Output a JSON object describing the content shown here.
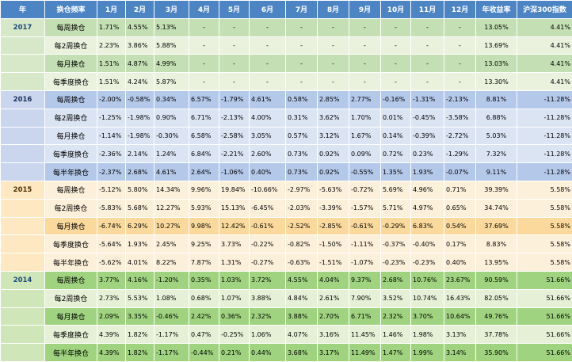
{
  "headers": [
    "年",
    "换仓频率",
    "1月",
    "2月",
    "3月",
    "4月",
    "5月",
    "6月",
    "7月",
    "8月",
    "9月",
    "10月",
    "11月",
    "12月",
    "年收益率",
    "沪深300指数"
  ],
  "groups": [
    {
      "year": "2017",
      "rows": [
        {
          "freq": "每周换仓",
          "highlight": true,
          "months": [
            "1.71%",
            "4.55%",
            "5.13%",
            "-",
            "-",
            "-",
            "-",
            "-",
            "-",
            "-",
            "-",
            "-"
          ],
          "annual": "13.05%",
          "hs300": "4.41%"
        },
        {
          "freq": "每2周换仓",
          "highlight": false,
          "months": [
            "2.23%",
            "3.86%",
            "5.88%",
            "-",
            "-",
            "-",
            "-",
            "-",
            "-",
            "-",
            "-",
            "-"
          ],
          "annual": "13.69%",
          "hs300": "4.41%"
        },
        {
          "freq": "每月换仓",
          "highlight": true,
          "months": [
            "1.51%",
            "4.87%",
            "4.99%",
            "-",
            "-",
            "-",
            "-",
            "-",
            "-",
            "-",
            "-",
            "-"
          ],
          "annual": "13.03%",
          "hs300": "4.41%"
        },
        {
          "freq": "每季度换仓",
          "highlight": false,
          "months": [
            "1.51%",
            "4.24%",
            "5.87%",
            "-",
            "-",
            "-",
            "-",
            "-",
            "-",
            "-",
            "-",
            "-"
          ],
          "annual": "13.30%",
          "hs300": "4.41%"
        }
      ]
    },
    {
      "year": "2016",
      "rows": [
        {
          "freq": "每周换仓",
          "highlight": true,
          "months": [
            "-2.00%",
            "-0.58%",
            "0.34%",
            "6.57%",
            "-1.79%",
            "4.61%",
            "0.58%",
            "2.85%",
            "2.77%",
            "-0.16%",
            "-1.31%",
            "-2.13%"
          ],
          "annual": "8.81%",
          "hs300": "-11.28%"
        },
        {
          "freq": "每2周换仓",
          "highlight": false,
          "months": [
            "-1.25%",
            "-1.98%",
            "0.90%",
            "6.71%",
            "-2.13%",
            "4.00%",
            "0.31%",
            "3.62%",
            "1.70%",
            "0.01%",
            "-0.45%",
            "-3.58%"
          ],
          "annual": "6.88%",
          "hs300": "-11.28%"
        },
        {
          "freq": "每月换仓",
          "highlight": false,
          "months": [
            "-1.14%",
            "-1.98%",
            "-0.30%",
            "6.58%",
            "-2.58%",
            "3.05%",
            "0.57%",
            "3.12%",
            "1.67%",
            "0.14%",
            "-0.39%",
            "-2.72%"
          ],
          "annual": "5.03%",
          "hs300": "-11.28%"
        },
        {
          "freq": "每季度换仓",
          "highlight": false,
          "months": [
            "-2.36%",
            "2.14%",
            "1.24%",
            "6.84%",
            "-2.21%",
            "2.60%",
            "0.73%",
            "0.92%",
            "0.09%",
            "0.72%",
            "0.23%",
            "-1.29%"
          ],
          "annual": "7.32%",
          "hs300": "-11.28%"
        },
        {
          "freq": "每半年换仓",
          "highlight": true,
          "months": [
            "-2.37%",
            "2.68%",
            "4.61%",
            "2.64%",
            "-1.06%",
            "0.40%",
            "0.73%",
            "0.92%",
            "-0.55%",
            "1.35%",
            "1.93%",
            "-0.07%"
          ],
          "annual": "9.11%",
          "hs300": "-11.28%"
        }
      ]
    },
    {
      "year": "2015",
      "rows": [
        {
          "freq": "每周换仓",
          "highlight": false,
          "months": [
            "-5.12%",
            "5.80%",
            "14.34%",
            "9.96%",
            "19.84%",
            "-10.66%",
            "-2.97%",
            "-5.63%",
            "-0.72%",
            "5.69%",
            "4.96%",
            "0.71%"
          ],
          "annual": "39.39%",
          "hs300": "5.58%"
        },
        {
          "freq": "每2周换仓",
          "highlight": false,
          "months": [
            "-5.83%",
            "5.68%",
            "12.27%",
            "5.93%",
            "15.13%",
            "-6.45%",
            "-2.03%",
            "-3.39%",
            "-1.57%",
            "5.71%",
            "4.97%",
            "0.65%"
          ],
          "annual": "34.74%",
          "hs300": "5.58%"
        },
        {
          "freq": "每月换仓",
          "highlight": true,
          "months": [
            "-6.74%",
            "6.29%",
            "10.27%",
            "9.98%",
            "12.42%",
            "-0.61%",
            "-2.52%",
            "-2.85%",
            "-0.61%",
            "-0.29%",
            "6.83%",
            "0.54%"
          ],
          "annual": "37.69%",
          "hs300": "5.58%"
        },
        {
          "freq": "每季度换仓",
          "highlight": false,
          "months": [
            "-5.64%",
            "1.93%",
            "2.45%",
            "9.25%",
            "3.73%",
            "-0.22%",
            "-0.82%",
            "-1.50%",
            "-1.11%",
            "-0.37%",
            "-0.40%",
            "0.17%"
          ],
          "annual": "8.83%",
          "hs300": "5.58%"
        },
        {
          "freq": "每半年换仓",
          "highlight": false,
          "months": [
            "-5.62%",
            "4.01%",
            "8.22%",
            "7.87%",
            "1.31%",
            "-0.27%",
            "-0.63%",
            "-1.51%",
            "-1.07%",
            "-0.23%",
            "-0.23%",
            "0.40%"
          ],
          "annual": "13.95%",
          "hs300": "5.58%"
        }
      ]
    },
    {
      "year": "2014",
      "rows": [
        {
          "freq": "每周换仓",
          "highlight": true,
          "months": [
            "3.77%",
            "4.16%",
            "-1.20%",
            "0.35%",
            "1.03%",
            "3.72%",
            "4.55%",
            "4.04%",
            "9.37%",
            "2.68%",
            "10.76%",
            "23.67%"
          ],
          "annual": "90.59%",
          "hs300": "51.66%"
        },
        {
          "freq": "每2周换仓",
          "highlight": false,
          "months": [
            "2.73%",
            "5.53%",
            "1.08%",
            "0.68%",
            "1.07%",
            "3.88%",
            "4.84%",
            "2.61%",
            "7.90%",
            "3.52%",
            "10.74%",
            "16.43%"
          ],
          "annual": "82.05%",
          "hs300": "51.66%"
        },
        {
          "freq": "每月换仓",
          "highlight": true,
          "months": [
            "2.09%",
            "3.35%",
            "-0.46%",
            "2.42%",
            "0.36%",
            "2.32%",
            "3.88%",
            "2.70%",
            "6.71%",
            "2.32%",
            "3.70%",
            "10.64%"
          ],
          "annual": "49.76%",
          "hs300": "51.66%"
        },
        {
          "freq": "每季度换仓",
          "highlight": false,
          "months": [
            "4.39%",
            "1.82%",
            "-1.17%",
            "0.47%",
            "-0.25%",
            "1.06%",
            "4.07%",
            "3.16%",
            "11.45%",
            "1.46%",
            "1.98%",
            "3.13%"
          ],
          "annual": "37.78%",
          "hs300": "51.66%"
        },
        {
          "freq": "每半年换仓",
          "highlight": true,
          "months": [
            "4.39%",
            "1.82%",
            "-1.17%",
            "-0.44%",
            "0.21%",
            "0.44%",
            "3.68%",
            "3.17%",
            "11.49%",
            "1.47%",
            "1.99%",
            "3.14%"
          ],
          "annual": "35.90%",
          "hs300": "51.66%"
        }
      ]
    }
  ]
}
